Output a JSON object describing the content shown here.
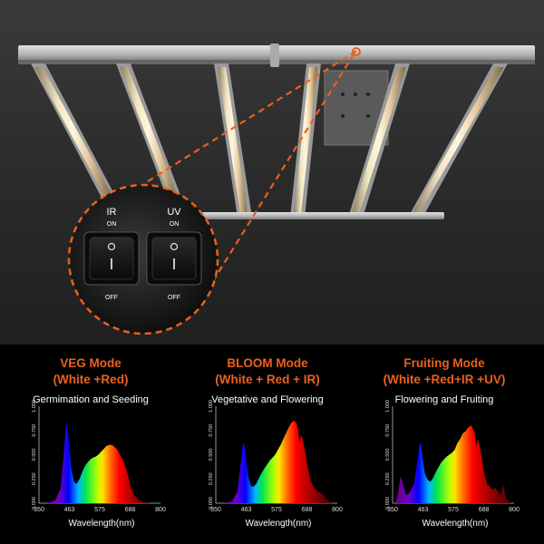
{
  "switch_panel": {
    "ir": {
      "title": "IR",
      "on": "ON",
      "off": "OFF"
    },
    "uv": {
      "title": "UV",
      "on": "ON",
      "off": "OFF"
    }
  },
  "colors": {
    "accent": "#e8621c",
    "background": "#000000",
    "panel": "#2c2c2c"
  },
  "modes": [
    {
      "title1": "VEG Mode",
      "title2": "(White +Red)",
      "subtitle": "Germimation and Seeding"
    },
    {
      "title1": "BLOOM Mode",
      "title2": "(White + Red + IR)",
      "subtitle": "Vegetative and Flowering"
    },
    {
      "title1": "Fruiting Mode",
      "title2": "(White +Red+IR +UV)",
      "subtitle": "Flowering and Fruiting"
    }
  ],
  "chart_data": [
    {
      "type": "area",
      "xlabel": "Wavelength(nm)",
      "x_ticks": [
        "350",
        "463",
        "575",
        "688",
        "800"
      ],
      "y_ticks": [
        "0.000",
        "0.250",
        "0.500",
        "0.750",
        "1.000"
      ],
      "xlim": [
        350,
        800
      ],
      "ylim": [
        0,
        1
      ],
      "x": [
        380,
        410,
        430,
        440,
        450,
        455,
        460,
        470,
        480,
        490,
        500,
        510,
        520,
        530,
        540,
        550,
        560,
        570,
        580,
        590,
        600,
        610,
        620,
        630,
        640,
        650,
        660,
        670,
        680,
        690,
        700,
        720,
        740,
        760,
        780
      ],
      "y": [
        0,
        0.03,
        0.15,
        0.45,
        0.8,
        0.82,
        0.65,
        0.35,
        0.22,
        0.2,
        0.25,
        0.32,
        0.38,
        0.42,
        0.45,
        0.47,
        0.48,
        0.5,
        0.53,
        0.56,
        0.59,
        0.6,
        0.6,
        0.58,
        0.55,
        0.5,
        0.45,
        0.38,
        0.28,
        0.17,
        0.09,
        0.03,
        0.01,
        0,
        0
      ]
    },
    {
      "type": "area",
      "xlabel": "Wavelength(nm)",
      "x_ticks": [
        "350",
        "463",
        "575",
        "688",
        "800"
      ],
      "y_ticks": [
        "0.000",
        "0.250",
        "0.500",
        "0.750",
        "1.000"
      ],
      "xlim": [
        350,
        800
      ],
      "ylim": [
        0,
        1
      ],
      "x": [
        380,
        410,
        430,
        440,
        450,
        455,
        460,
        470,
        480,
        490,
        500,
        510,
        520,
        530,
        540,
        550,
        560,
        570,
        580,
        590,
        600,
        610,
        620,
        630,
        640,
        650,
        655,
        660,
        665,
        670,
        680,
        690,
        700,
        710,
        720,
        730,
        740,
        750,
        760,
        780
      ],
      "y": [
        0,
        0.02,
        0.12,
        0.35,
        0.6,
        0.62,
        0.5,
        0.28,
        0.18,
        0.17,
        0.2,
        0.26,
        0.31,
        0.36,
        0.4,
        0.44,
        0.47,
        0.5,
        0.55,
        0.6,
        0.66,
        0.72,
        0.78,
        0.83,
        0.85,
        0.82,
        0.75,
        0.62,
        0.7,
        0.68,
        0.55,
        0.38,
        0.25,
        0.18,
        0.14,
        0.12,
        0.1,
        0.08,
        0.04,
        0
      ]
    },
    {
      "type": "area",
      "xlabel": "Wavelength(nm)",
      "x_ticks": [
        "350",
        "463",
        "575",
        "688",
        "800"
      ],
      "y_ticks": [
        "0.000",
        "0.250",
        "0.500",
        "0.750",
        "1.000"
      ],
      "xlim": [
        350,
        800
      ],
      "ylim": [
        0,
        1
      ],
      "x": [
        360,
        370,
        380,
        390,
        400,
        410,
        420,
        430,
        440,
        450,
        455,
        460,
        470,
        480,
        490,
        500,
        510,
        520,
        530,
        540,
        550,
        560,
        570,
        580,
        590,
        600,
        610,
        620,
        630,
        640,
        650,
        655,
        660,
        665,
        670,
        680,
        690,
        700,
        720,
        730,
        740,
        750,
        760,
        770,
        790
      ],
      "y": [
        0,
        0.1,
        0.28,
        0.18,
        0.08,
        0.1,
        0.15,
        0.2,
        0.4,
        0.6,
        0.62,
        0.48,
        0.3,
        0.24,
        0.22,
        0.26,
        0.32,
        0.37,
        0.42,
        0.45,
        0.48,
        0.5,
        0.52,
        0.55,
        0.62,
        0.66,
        0.72,
        0.74,
        0.78,
        0.8,
        0.76,
        0.7,
        0.58,
        0.66,
        0.62,
        0.48,
        0.3,
        0.2,
        0.14,
        0.16,
        0.12,
        0.08,
        0.2,
        0.05,
        0
      ]
    }
  ]
}
